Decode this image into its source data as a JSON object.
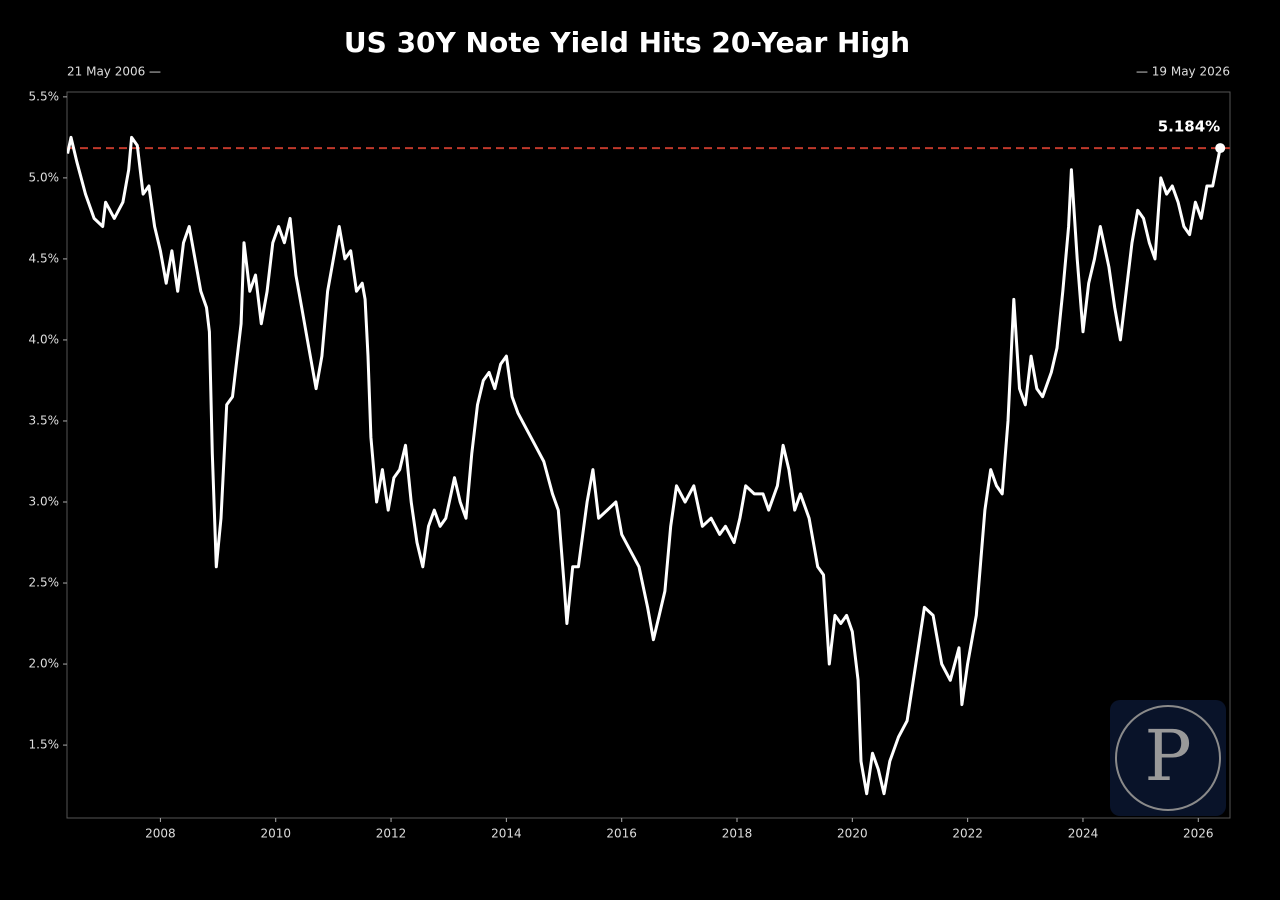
{
  "chart_data": {
    "type": "line",
    "title": "US 30Y Note Yield Hits 20-Year High",
    "start_label": "21 May 2006 —",
    "end_label": "— 19 May 2026",
    "reference_value": 5.184,
    "reference_label": "5.184%",
    "reference_color": "#c0392b",
    "watermark": "P",
    "xlim": [
      2006.38,
      2026.55
    ],
    "xticks": [
      2008,
      2010,
      2012,
      2014,
      2016,
      2018,
      2020,
      2022,
      2024,
      2026
    ],
    "ylim": [
      1.05,
      5.53
    ],
    "yticks": [
      {
        "value": 1.5,
        "label": "1.5%"
      },
      {
        "value": 2.0,
        "label": "2.0%"
      },
      {
        "value": 2.5,
        "label": "2.5%"
      },
      {
        "value": 3.0,
        "label": "3.0%"
      },
      {
        "value": 3.5,
        "label": "3.5%"
      },
      {
        "value": 4.0,
        "label": "4.0%"
      },
      {
        "value": 4.5,
        "label": "4.5%"
      },
      {
        "value": 5.0,
        "label": "5.0%"
      },
      {
        "value": 5.5,
        "label": "5.5%"
      }
    ],
    "grid": false,
    "series": [
      {
        "color": "#ffffff",
        "x": [
          2006.39,
          2006.45,
          2006.55,
          2006.7,
          2006.85,
          2007.0,
          2007.05,
          2007.2,
          2007.35,
          2007.45,
          2007.5,
          2007.6,
          2007.7,
          2007.8,
          2007.9,
          2008.0,
          2008.1,
          2008.2,
          2008.3,
          2008.4,
          2008.5,
          2008.6,
          2008.7,
          2008.8,
          2008.85,
          2008.9,
          2008.97,
          2009.05,
          2009.15,
          2009.25,
          2009.4,
          2009.45,
          2009.55,
          2009.65,
          2009.75,
          2009.85,
          2009.95,
          2010.05,
          2010.15,
          2010.25,
          2010.35,
          2010.45,
          2010.55,
          2010.65,
          2010.7,
          2010.8,
          2010.9,
          2011.0,
          2011.1,
          2011.2,
          2011.3,
          2011.4,
          2011.5,
          2011.55,
          2011.6,
          2011.65,
          2011.75,
          2011.85,
          2011.95,
          2012.05,
          2012.15,
          2012.25,
          2012.35,
          2012.45,
          2012.55,
          2012.65,
          2012.75,
          2012.85,
          2012.95,
          2013.1,
          2013.2,
          2013.3,
          2013.4,
          2013.5,
          2013.6,
          2013.7,
          2013.8,
          2013.9,
          2014.0,
          2014.1,
          2014.2,
          2014.35,
          2014.5,
          2014.65,
          2014.8,
          2014.9,
          2015.0,
          2015.05,
          2015.15,
          2015.25,
          2015.4,
          2015.5,
          2015.6,
          2015.75,
          2015.9,
          2016.0,
          2016.15,
          2016.3,
          2016.45,
          2016.55,
          2016.65,
          2016.75,
          2016.85,
          2016.95,
          2017.1,
          2017.25,
          2017.4,
          2017.55,
          2017.7,
          2017.8,
          2017.95,
          2018.05,
          2018.15,
          2018.3,
          2018.45,
          2018.55,
          2018.7,
          2018.8,
          2018.9,
          2019.0,
          2019.1,
          2019.25,
          2019.4,
          2019.5,
          2019.6,
          2019.7,
          2019.8,
          2019.9,
          2020.0,
          2020.1,
          2020.15,
          2020.25,
          2020.35,
          2020.45,
          2020.55,
          2020.65,
          2020.8,
          2020.95,
          2021.1,
          2021.25,
          2021.4,
          2021.55,
          2021.7,
          2021.85,
          2021.9,
          2022.0,
          2022.15,
          2022.3,
          2022.4,
          2022.5,
          2022.6,
          2022.7,
          2022.8,
          2022.9,
          2023.0,
          2023.1,
          2023.2,
          2023.3,
          2023.45,
          2023.55,
          2023.65,
          2023.75,
          2023.8,
          2023.9,
          2024.0,
          2024.1,
          2024.2,
          2024.3,
          2024.45,
          2024.55,
          2024.65,
          2024.75,
          2024.85,
          2024.95,
          2025.05,
          2025.15,
          2025.25,
          2025.35,
          2025.45,
          2025.55,
          2025.65,
          2025.75,
          2025.85,
          2025.95,
          2026.05,
          2026.15,
          2026.25,
          2026.38
        ],
        "values": [
          5.15,
          5.25,
          5.1,
          4.9,
          4.75,
          4.7,
          4.85,
          4.75,
          4.85,
          5.05,
          5.25,
          5.2,
          4.9,
          4.95,
          4.7,
          4.55,
          4.35,
          4.55,
          4.3,
          4.6,
          4.7,
          4.5,
          4.3,
          4.2,
          4.05,
          3.3,
          2.6,
          2.9,
          3.6,
          3.65,
          4.1,
          4.6,
          4.3,
          4.4,
          4.1,
          4.3,
          4.6,
          4.7,
          4.6,
          4.75,
          4.4,
          4.2,
          4.0,
          3.8,
          3.7,
          3.9,
          4.3,
          4.5,
          4.7,
          4.5,
          4.55,
          4.3,
          4.35,
          4.25,
          3.9,
          3.4,
          3.0,
          3.2,
          2.95,
          3.15,
          3.2,
          3.35,
          3.0,
          2.75,
          2.6,
          2.85,
          2.95,
          2.85,
          2.9,
          3.15,
          3.0,
          2.9,
          3.3,
          3.6,
          3.75,
          3.8,
          3.7,
          3.85,
          3.9,
          3.65,
          3.55,
          3.45,
          3.35,
          3.25,
          3.05,
          2.95,
          2.5,
          2.25,
          2.6,
          2.6,
          3.0,
          3.2,
          2.9,
          2.95,
          3.0,
          2.8,
          2.7,
          2.6,
          2.35,
          2.15,
          2.3,
          2.45,
          2.85,
          3.1,
          3.0,
          3.1,
          2.85,
          2.9,
          2.8,
          2.85,
          2.75,
          2.9,
          3.1,
          3.05,
          3.05,
          2.95,
          3.1,
          3.35,
          3.2,
          2.95,
          3.05,
          2.9,
          2.6,
          2.55,
          2.0,
          2.3,
          2.25,
          2.3,
          2.2,
          1.9,
          1.4,
          1.2,
          1.45,
          1.35,
          1.2,
          1.4,
          1.55,
          1.65,
          2.0,
          2.35,
          2.3,
          2.0,
          1.9,
          2.1,
          1.75,
          2.0,
          2.3,
          2.95,
          3.2,
          3.1,
          3.05,
          3.5,
          4.25,
          3.7,
          3.6,
          3.9,
          3.7,
          3.65,
          3.8,
          3.95,
          4.3,
          4.7,
          5.05,
          4.5,
          4.05,
          4.35,
          4.5,
          4.7,
          4.45,
          4.2,
          4.0,
          4.3,
          4.6,
          4.8,
          4.75,
          4.6,
          4.5,
          5.0,
          4.9,
          4.95,
          4.85,
          4.7,
          4.65,
          4.85,
          4.75,
          4.95,
          4.95,
          5.184
        ]
      }
    ]
  }
}
